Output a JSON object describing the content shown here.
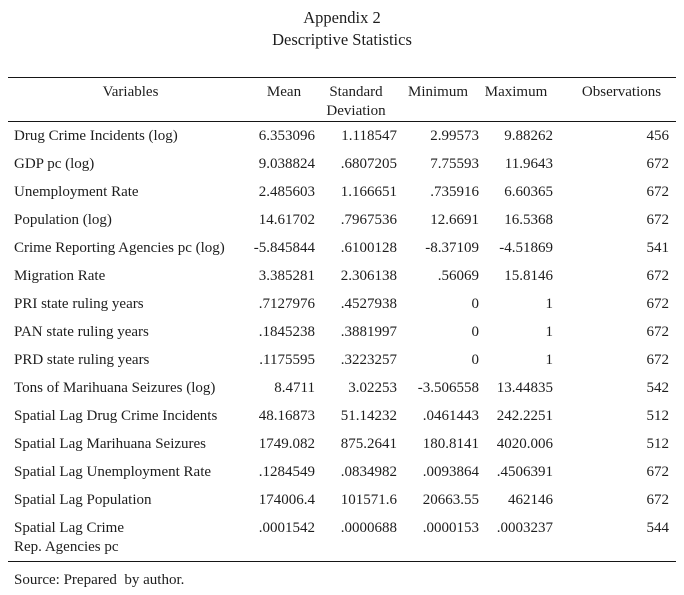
{
  "page": {
    "title_line1": "Appendix 2",
    "title_line2": "Descriptive Statistics",
    "source_note": "Source: Prepared  by author.",
    "colors": {
      "background": "#ffffff",
      "text": "#1d1d1d",
      "rule": "#161616"
    }
  },
  "table": {
    "headers": {
      "variables": "Variables",
      "mean": "Mean",
      "std": "Standard Deviation",
      "min": "Minimum",
      "max": "Maximum",
      "obs": "Observations"
    },
    "rows": [
      {
        "variable": "Drug Crime Incidents (log)",
        "mean": "6.353096",
        "std": "1.118547",
        "min": "2.99573",
        "max": "9.88262",
        "obs": "456"
      },
      {
        "variable": "GDP pc (log)",
        "mean": "9.038824",
        "std": ".6807205",
        "min": "7.75593",
        "max": "11.9643",
        "obs": "672"
      },
      {
        "variable": "Unemployment Rate",
        "mean": "2.485603",
        "std": "1.166651",
        "min": ".735916",
        "max": "6.60365",
        "obs": "672"
      },
      {
        "variable": "Population (log)",
        "mean": "14.61702",
        "std": ".7967536",
        "min": "12.6691",
        "max": "16.5368",
        "obs": "672"
      },
      {
        "variable": "Crime Reporting Agencies pc (log)",
        "mean": "-5.845844",
        "std": ".6100128",
        "min": "-8.37109",
        "max": "-4.51869",
        "obs": "541"
      },
      {
        "variable": "Migration Rate",
        "mean": "3.385281",
        "std": "2.306138",
        "min": ".56069",
        "max": "15.8146",
        "obs": "672"
      },
      {
        "variable": "PRI state ruling years",
        "mean": ".7127976",
        "std": ".4527938",
        "min": "0",
        "max": "1",
        "obs": "672"
      },
      {
        "variable": "PAN state ruling years",
        "mean": ".1845238",
        "std": ".3881997",
        "min": "0",
        "max": "1",
        "obs": "672"
      },
      {
        "variable": "PRD state ruling years",
        "mean": ".1175595",
        "std": ".3223257",
        "min": "0",
        "max": "1",
        "obs": "672"
      },
      {
        "variable": "Tons of Marihuana Seizures (log)",
        "mean": "8.4711",
        "std": "3.02253",
        "min": "-3.506558",
        "max": "13.44835",
        "obs": "542"
      },
      {
        "variable": "Spatial Lag Drug Crime Incidents",
        "mean": "48.16873",
        "std": "51.14232",
        "min": ".0461443",
        "max": "242.2251",
        "obs": "512"
      },
      {
        "variable": "Spatial Lag Marihuana Seizures",
        "mean": "1749.082",
        "std": "875.2641",
        "min": "180.8141",
        "max": "4020.006",
        "obs": "512"
      },
      {
        "variable": "Spatial Lag Unemployment Rate",
        "mean": ".1284549",
        "std": ".0834982",
        "min": ".0093864",
        "max": ".4506391",
        "obs": "672"
      },
      {
        "variable": "Spatial Lag Population",
        "mean": "174006.4",
        "std": "101571.6",
        "min": "20663.55",
        "max": "462146",
        "obs": "672"
      },
      {
        "variable": "Spatial Lag Crime",
        "variable_line2": "Rep. Agencies pc",
        "mean": ".0001542",
        "std": ".0000688",
        "min": ".0000153",
        "max": ".0003237",
        "obs": "544"
      }
    ]
  }
}
